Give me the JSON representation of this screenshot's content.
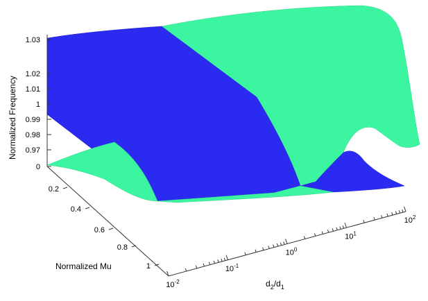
{
  "chart_data": {
    "type": "surface3d",
    "zlabel": "Normalized Frequency",
    "ylabel": "Normalized Mu",
    "xlabel_main": "d",
    "xlabel_sub1": "2",
    "xlabel_sep": "/d",
    "xlabel_sub2": "1",
    "z_ticks": [
      "0",
      "0.97",
      "0.98",
      "0.99",
      "1",
      "1.01",
      "1.02",
      "1.03"
    ],
    "y_ticks": [
      "0.2",
      "0.4",
      "0.6",
      "0.8",
      "1"
    ],
    "x_ticks": [
      {
        "base": "10",
        "exp": "-2"
      },
      {
        "base": "10",
        "exp": "-1"
      },
      {
        "base": "10",
        "exp": "0"
      },
      {
        "base": "10",
        "exp": "1"
      },
      {
        "base": "10",
        "exp": "2"
      }
    ],
    "x_scale": "log",
    "xlim": [
      0.01,
      100
    ],
    "ylim": [
      0,
      1
    ],
    "surface_colors": {
      "blue_surface": "#2a2af0",
      "green_surface": "#3cf5a0"
    }
  }
}
